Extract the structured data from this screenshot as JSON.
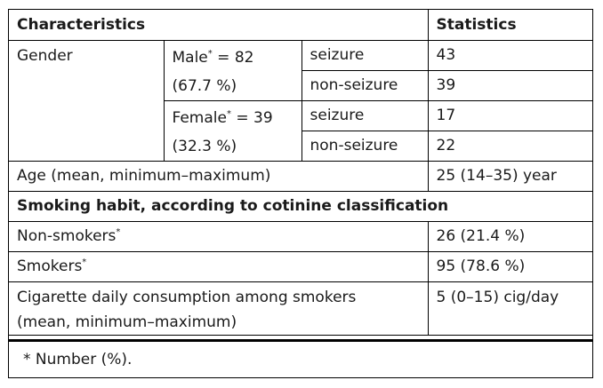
{
  "header": {
    "characteristics": "Characteristics",
    "statistics": "Statistics"
  },
  "gender": {
    "label": "Gender",
    "male": {
      "label": "Male",
      "count": " = 82",
      "pct": "(67.7 %)"
    },
    "female": {
      "label": "Female",
      "count": " = 39",
      "pct": "(32.3 %)"
    },
    "seizure_label": "seizure",
    "nonseizure_label": "non-seizure",
    "male_seizure": "43",
    "male_nonseizure": "39",
    "female_seizure": "17",
    "female_nonseizure": "22"
  },
  "age": {
    "label": "Age (mean, minimum–maximum)",
    "value": "25 (14–35) year"
  },
  "smoking": {
    "section_title": "Smoking habit, according to cotinine classification",
    "nonsmokers_label": "Non-smokers",
    "nonsmokers_value": "26 (21.4 %)",
    "smokers_label": "Smokers",
    "smokers_value": "95 (78.6 %)",
    "consumption_label_line1": "Cigarette daily consumption among smokers",
    "consumption_label_line2": "(mean, minimum–maximum)",
    "consumption_value": "5 (0–15) cig/day"
  },
  "footnote": {
    "marker": "*",
    "text": "Number (%)."
  },
  "asterisk": "*"
}
